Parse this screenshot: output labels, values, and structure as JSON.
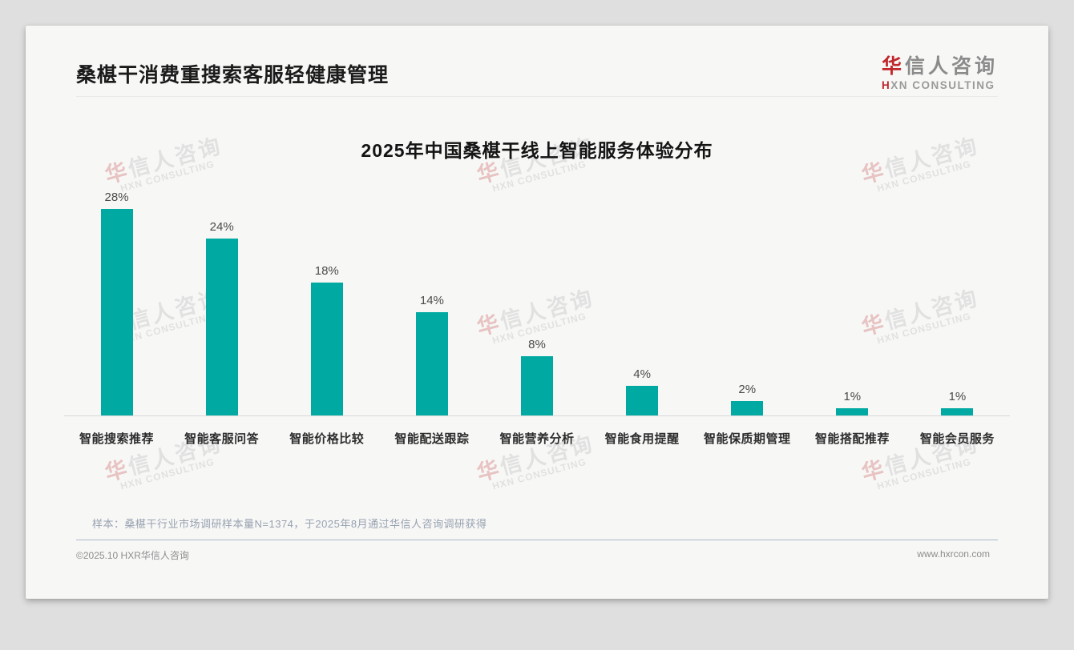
{
  "page": {
    "header_title": "桑椹干消费重搜索客服轻健康管理",
    "logo": {
      "brand_first": "华",
      "brand_rest": "信人咨询",
      "subtitle_first": "H",
      "subtitle_rest": "XN CONSULTING"
    },
    "footnote": "样本：桑椹干行业市场调研样本量N=1374，于2025年8月通过华信人咨询调研获得",
    "footer_left": "©2025.10 HXR华信人咨询",
    "footer_right": "www.hxrcon.com",
    "watermark": {
      "line1_first": "华",
      "line1_rest": "信人咨询",
      "line2": "HXN CONSULTING"
    }
  },
  "chart_data": {
    "type": "bar",
    "title": "2025年中国桑椹干线上智能服务体验分布",
    "categories": [
      "智能搜索推荐",
      "智能客服问答",
      "智能价格比较",
      "智能配送跟踪",
      "智能营养分析",
      "智能食用提醒",
      "智能保质期管理",
      "智能搭配推荐",
      "智能会员服务"
    ],
    "values": [
      28,
      24,
      18,
      14,
      8,
      4,
      2,
      1,
      1
    ],
    "value_labels": [
      "28%",
      "24%",
      "18%",
      "14%",
      "8%",
      "4%",
      "2%",
      "1%",
      "1%"
    ],
    "unit": "percent",
    "bar_color": "#00a9a1",
    "xlabel": "",
    "ylabel": "",
    "ylim": [
      0,
      30
    ],
    "grid": false,
    "legend": false
  }
}
